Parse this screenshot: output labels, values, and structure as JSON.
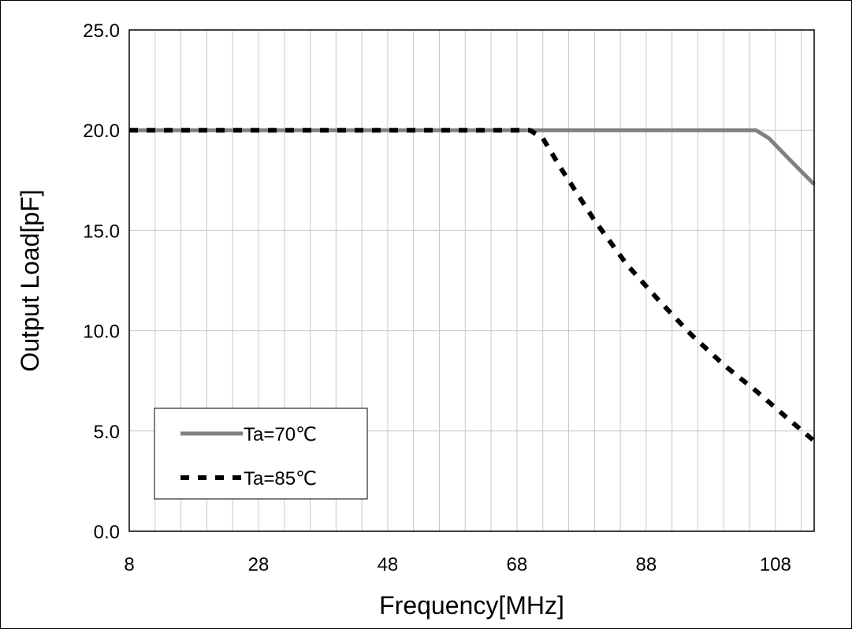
{
  "chart_data": {
    "type": "line",
    "title": "",
    "xlabel": "Frequency[MHz]",
    "ylabel": "Output Load[pF]",
    "xlim": [
      8,
      114
    ],
    "ylim": [
      0,
      25
    ],
    "x_ticks": [
      8,
      28,
      48,
      68,
      88,
      108
    ],
    "x_tick_labels": [
      "8",
      "28",
      "48",
      "68",
      "88",
      "108"
    ],
    "x_minor_step": 4,
    "y_ticks": [
      0,
      5,
      10,
      15,
      20,
      25
    ],
    "y_tick_labels": [
      "0.0",
      "5.0",
      "10.0",
      "15.0",
      "20.0",
      "25.0"
    ],
    "grid": true,
    "legend_position": "bottom-left",
    "series": [
      {
        "name": "Ta=70℃",
        "color": "#808080",
        "style": "solid",
        "x": [
          8,
          105,
          107,
          110,
          114
        ],
        "y": [
          20,
          20,
          19.6,
          18.6,
          17.3
        ]
      },
      {
        "name": "Ta=85℃",
        "color": "#000000",
        "style": "dashed",
        "x": [
          8,
          70,
          72,
          75,
          80,
          85,
          90,
          95,
          100,
          105,
          110,
          114
        ],
        "y": [
          20,
          20,
          19.6,
          18,
          15.5,
          13.3,
          11.5,
          9.8,
          8.3,
          7,
          5.6,
          4.5
        ]
      }
    ]
  }
}
